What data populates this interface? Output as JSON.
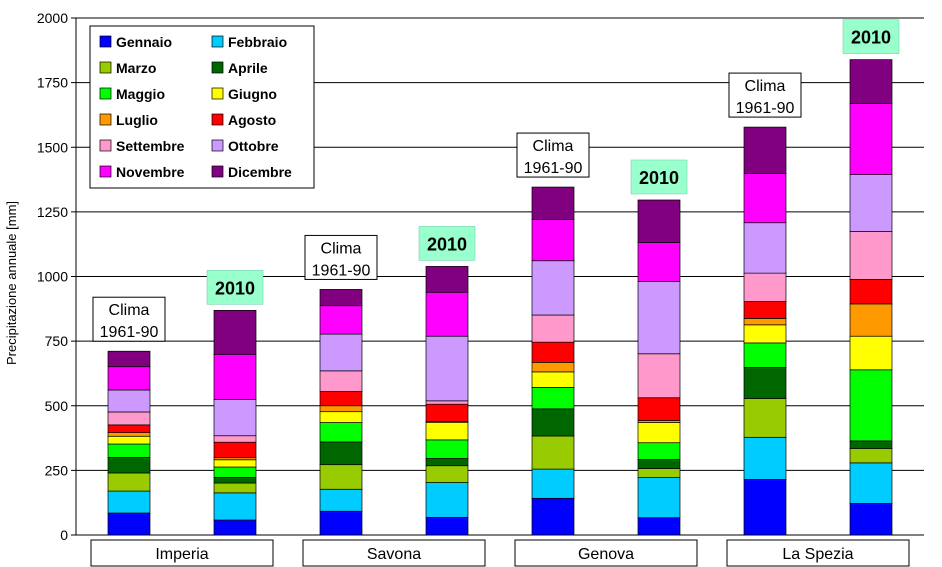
{
  "chart_data": {
    "type": "bar",
    "stacked": true,
    "ylabel": "Precipitazione annuale [mm]",
    "ylim": [
      0,
      2000
    ],
    "yticks": [
      0,
      250,
      500,
      750,
      1000,
      1250,
      1500,
      1750,
      2000
    ],
    "grid": true,
    "legend_position": "top-left",
    "categories": [
      "Imperia Clima 1961-90",
      "Imperia 2010",
      "Savona Clima 1961-90",
      "Savona 2010",
      "Genova Clima 1961-90",
      "Genova 2010",
      "La Spezia Clima 1961-90",
      "La Spezia 2010"
    ],
    "bar_labels": [
      {
        "line1": "Clima",
        "line2": "1961-90",
        "kind": "clima"
      },
      {
        "line1": "2010",
        "line2": "",
        "kind": "2010"
      },
      {
        "line1": "Clima",
        "line2": "1961-90",
        "kind": "clima"
      },
      {
        "line1": "2010",
        "line2": "",
        "kind": "2010"
      },
      {
        "line1": "Clima",
        "line2": "1961-90",
        "kind": "clima"
      },
      {
        "line1": "2010",
        "line2": "",
        "kind": "2010"
      },
      {
        "line1": "Clima",
        "line2": "1961-90",
        "kind": "clima"
      },
      {
        "line1": "2010",
        "line2": "",
        "kind": "2010"
      }
    ],
    "regions": [
      "Imperia",
      "Savona",
      "Genova",
      "La Spezia"
    ],
    "series": [
      {
        "name": "Gennaio",
        "color": "#0000ff",
        "values": [
          85,
          58,
          92,
          68,
          142,
          67,
          215,
          122
        ]
      },
      {
        "name": "Febbraio",
        "color": "#00ccff",
        "values": [
          85,
          105,
          85,
          135,
          113,
          155,
          163,
          157
        ]
      },
      {
        "name": "Marzo",
        "color": "#99cc00",
        "values": [
          70,
          38,
          95,
          65,
          128,
          35,
          150,
          55
        ]
      },
      {
        "name": "Aprile",
        "color": "#006600",
        "values": [
          60,
          22,
          88,
          28,
          105,
          35,
          120,
          30
        ]
      },
      {
        "name": "Maggio",
        "color": "#00ff00",
        "values": [
          52,
          40,
          75,
          72,
          83,
          65,
          95,
          275
        ]
      },
      {
        "name": "Giugno",
        "color": "#ffff00",
        "values": [
          30,
          28,
          42,
          68,
          60,
          78,
          70,
          130
        ]
      },
      {
        "name": "Luglio",
        "color": "#ff9900",
        "values": [
          14,
          8,
          23,
          3,
          37,
          8,
          25,
          125
        ]
      },
      {
        "name": "Agosto",
        "color": "#ff0000",
        "values": [
          30,
          60,
          55,
          67,
          78,
          88,
          65,
          95
        ]
      },
      {
        "name": "Settembre",
        "color": "#ff99cc",
        "values": [
          50,
          25,
          80,
          13,
          105,
          170,
          110,
          185
        ]
      },
      {
        "name": "Ottobre",
        "color": "#cc99ff",
        "values": [
          85,
          140,
          142,
          250,
          210,
          280,
          195,
          220
        ]
      },
      {
        "name": "Novembre",
        "color": "#ff00ff",
        "values": [
          90,
          175,
          110,
          170,
          160,
          150,
          190,
          275
        ]
      },
      {
        "name": "Dicembre",
        "color": "#800080",
        "values": [
          60,
          170,
          63,
          100,
          125,
          165,
          180,
          170
        ]
      }
    ]
  }
}
